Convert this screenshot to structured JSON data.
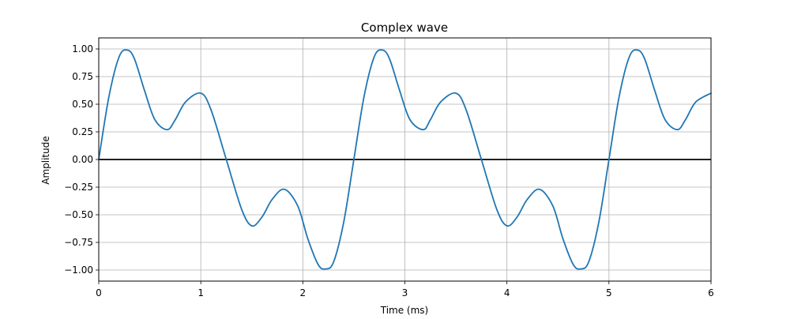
{
  "chart_data": {
    "type": "line",
    "title": "Complex wave",
    "xlabel": "Time (ms)",
    "ylabel": "Amplitude",
    "xlim": [
      0,
      6
    ],
    "ylim": [
      -1.1,
      1.1
    ],
    "grid": true,
    "legend": "none",
    "x_ticks": [
      0,
      1,
      2,
      3,
      4,
      5,
      6
    ],
    "x_tick_labels": [
      "0",
      "1",
      "2",
      "3",
      "4",
      "5",
      "6"
    ],
    "y_ticks": [
      1.0,
      0.75,
      0.5,
      0.25,
      0.0,
      -0.25,
      -0.5,
      -0.75,
      -1.0
    ],
    "y_tick_labels": [
      "1.00",
      "0.75",
      "0.50",
      "0.25",
      "0.00",
      "−0.25",
      "−0.50",
      "−0.75",
      "−1.00"
    ],
    "reference_line": {
      "y": 0,
      "color": "#000000"
    },
    "series": [
      {
        "color": "#1f77b4",
        "x": [
          0,
          0.1,
          0.2,
          0.28,
          0.35,
          0.45,
          0.55,
          0.67,
          0.75,
          0.85,
          1.0,
          1.1,
          1.25,
          1.4,
          1.5,
          1.6,
          1.7,
          1.82,
          1.95,
          2.05,
          2.15,
          2.22,
          2.3,
          2.4,
          2.5,
          2.6,
          2.7,
          2.78,
          2.85,
          2.95,
          3.05,
          3.18,
          3.25,
          3.35,
          3.5,
          3.6,
          3.75,
          3.9,
          4.0,
          4.1,
          4.2,
          4.32,
          4.45,
          4.55,
          4.65,
          4.72,
          4.8,
          4.9,
          5.0,
          5.1,
          5.2,
          5.28,
          5.35,
          5.45,
          5.55,
          5.67,
          5.75,
          5.85,
          6.0
        ],
        "y": [
          0.0,
          0.57,
          0.93,
          0.99,
          0.91,
          0.62,
          0.36,
          0.27,
          0.36,
          0.52,
          0.6,
          0.45,
          0.0,
          -0.45,
          -0.6,
          -0.52,
          -0.36,
          -0.27,
          -0.42,
          -0.72,
          -0.95,
          -0.99,
          -0.93,
          -0.57,
          0.0,
          0.57,
          0.93,
          0.99,
          0.91,
          0.62,
          0.36,
          0.27,
          0.36,
          0.52,
          0.6,
          0.45,
          0.0,
          -0.45,
          -0.6,
          -0.52,
          -0.36,
          -0.27,
          -0.42,
          -0.72,
          -0.95,
          -0.99,
          -0.93,
          -0.57,
          0.0,
          0.57,
          0.93,
          0.99,
          0.91,
          0.62,
          0.36,
          0.27,
          0.36,
          0.52,
          0.6
        ]
      }
    ]
  }
}
